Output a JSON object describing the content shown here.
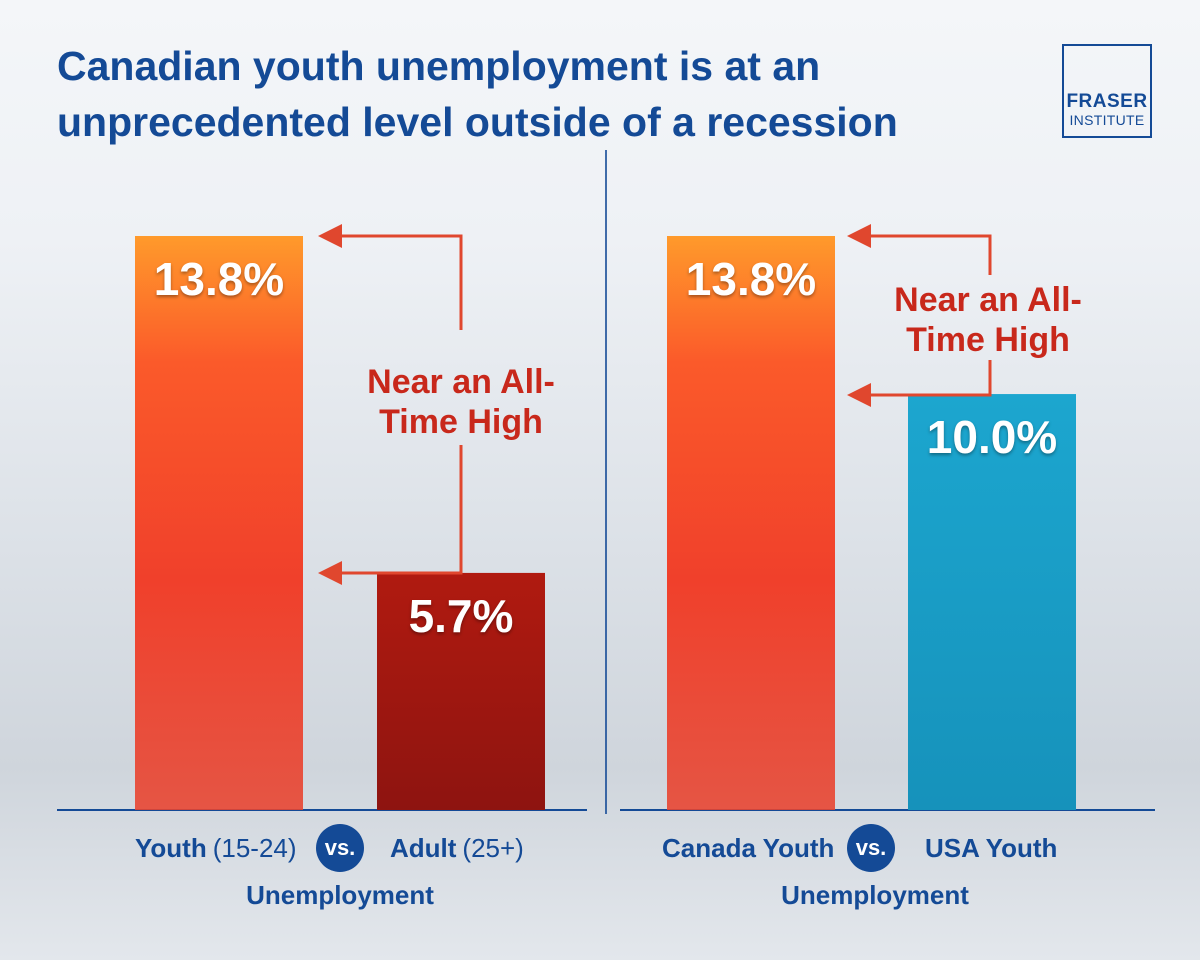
{
  "title": "Canadian youth unemployment is at an unprecedented level outside of a recession",
  "logo": {
    "line1": "FRASER",
    "line2": "INSTITUTE"
  },
  "panels": [
    {
      "left": {
        "label": "Youth",
        "paren": "(15-24)"
      },
      "vs": "vs.",
      "right": {
        "label": "Adult",
        "paren": "(25+)"
      },
      "metric": "Unemployment",
      "annotation": {
        "line1": "Near an All-",
        "line2": "Time High"
      }
    },
    {
      "left": {
        "label": "Canada Youth",
        "paren": ""
      },
      "vs": "vs.",
      "right": {
        "label": "USA Youth",
        "paren": ""
      },
      "metric": "Unemployment",
      "annotation": {
        "line1": "Near an All-",
        "line2": "Time High"
      }
    }
  ],
  "chart_data": [
    {
      "type": "bar",
      "categories": [
        "Youth (15-24)",
        "Adult (25+)"
      ],
      "values": [
        13.8,
        5.7
      ],
      "value_labels": [
        "13.8%",
        "5.7%"
      ],
      "colors": [
        "#f0462b",
        "#a8150f"
      ],
      "ylim": [
        0,
        13.8
      ],
      "grid": false
    },
    {
      "type": "bar",
      "categories": [
        "Canada Youth",
        "USA Youth"
      ],
      "values": [
        13.8,
        10.0
      ],
      "value_labels": [
        "13.8%",
        "10.0%"
      ],
      "colors": [
        "#f0462b",
        "#1aa0c8"
      ],
      "ylim": [
        0,
        13.8
      ],
      "grid": false
    }
  ],
  "colors": {
    "title": "#144a96",
    "annotation": "#c8281b",
    "arrow": "#e0472e"
  }
}
